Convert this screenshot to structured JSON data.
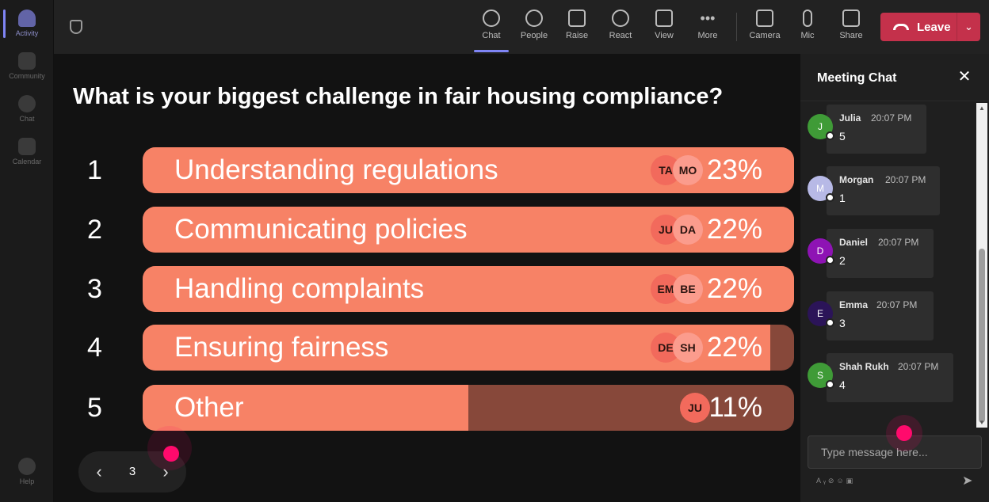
{
  "rail": {
    "items": [
      {
        "label": "Activity",
        "icon": "bell-icon",
        "active": true
      },
      {
        "label": "Community",
        "icon": "community-icon"
      },
      {
        "label": "Chat",
        "icon": "chat-icon"
      },
      {
        "label": "Calendar",
        "icon": "calendar-icon"
      },
      {
        "label": "Help",
        "icon": "help-icon"
      }
    ]
  },
  "toolbar": {
    "chat": "Chat",
    "people": "People",
    "raise": "Raise",
    "react": "React",
    "view": "View",
    "more": "More",
    "camera": "Camera",
    "mic": "Mic",
    "share": "Share",
    "leave": "Leave"
  },
  "poll": {
    "question": "What is your biggest challenge in fair housing compliance?",
    "options": [
      {
        "num": "1",
        "label": "Understanding regulations",
        "percent": "23%",
        "fill": 1.0,
        "avatars": [
          "TA",
          "MO"
        ]
      },
      {
        "num": "2",
        "label": "Communicating policies",
        "percent": "22%",
        "fill": 1.0,
        "avatars": [
          "JU",
          "DA"
        ]
      },
      {
        "num": "3",
        "label": "Handling complaints",
        "percent": "22%",
        "fill": 1.0,
        "avatars": [
          "EM",
          "BE"
        ]
      },
      {
        "num": "4",
        "label": "Ensuring fairness",
        "percent": "22%",
        "fill": 0.963,
        "avatars": [
          "DE",
          "SH"
        ]
      },
      {
        "num": "5",
        "label": "Other",
        "percent": "11%",
        "fill": 0.5,
        "avatars": [
          "JU"
        ]
      }
    ],
    "page": "3"
  },
  "chat": {
    "title": "Meeting Chat",
    "messages": [
      {
        "initial": "J",
        "name": "Julia",
        "time": "20:07 PM",
        "text": "5",
        "color": "#3f9b37"
      },
      {
        "initial": "M",
        "name": "Morgan",
        "time": "20:07 PM",
        "text": "1",
        "color": "#b7b9e6"
      },
      {
        "initial": "D",
        "name": "Daniel",
        "time": "20:07 PM",
        "text": "2",
        "color": "#8e13b4"
      },
      {
        "initial": "E",
        "name": "Emma",
        "time": "20:07 PM",
        "text": "3",
        "color": "#2b1458"
      },
      {
        "initial": "S",
        "name": "Shah Rukh",
        "time": "20:07 PM",
        "text": "4",
        "color": "#3f9b37"
      }
    ],
    "placeholder": "Type message here..."
  },
  "colors": {
    "bar_fill": "#f78266",
    "bar_track": "#87483a",
    "leave": "#c4314b",
    "accent": "#7f85f5",
    "cursor_dot": "#ff0a6c"
  }
}
